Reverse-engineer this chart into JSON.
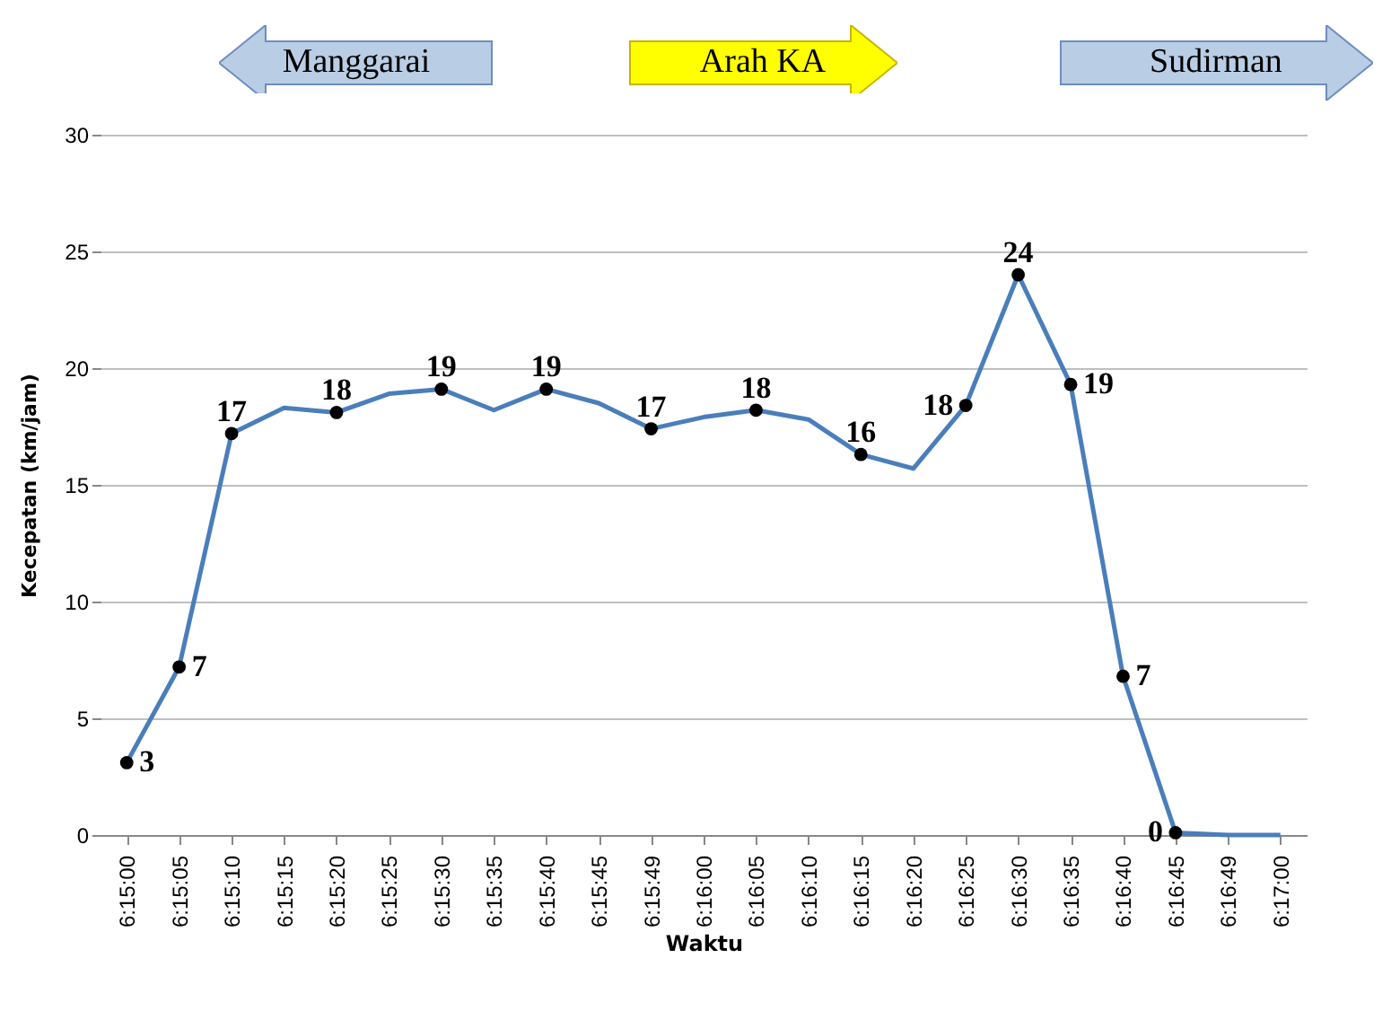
{
  "chart_data": {
    "type": "line",
    "annotations": [
      "Manggarai",
      "Arah KA",
      "Sudirman"
    ],
    "xlabel": "Waktu",
    "ylabel": "Kecepatan (km/jam)",
    "categories": [
      "6:15:00",
      "6:15:05",
      "6:15:10",
      "6:15:15",
      "6:15:20",
      "6:15:25",
      "6:15:30",
      "6:15:35",
      "6:15:40",
      "6:15:45",
      "6:15:49",
      "6:16:00",
      "6:16:05",
      "6:16:10",
      "6:16:15",
      "6:16:20",
      "6:16:25",
      "6:16:30",
      "6:16:35",
      "6:16:40",
      "6:16:45",
      "6:16:49",
      "6:17:00"
    ],
    "series": [
      {
        "color": "#4a7ebb",
        "values": [
          3.1,
          7.2,
          17.2,
          18.3,
          18.1,
          18.9,
          19.1,
          18.2,
          19.1,
          18.5,
          17.4,
          17.9,
          18.2,
          17.8,
          16.3,
          15.7,
          18.4,
          24.0,
          19.3,
          6.8,
          0.1,
          0,
          0
        ],
        "value_labels": [
          "3",
          "7",
          "17",
          null,
          "18",
          null,
          "19",
          null,
          "19",
          null,
          "17",
          null,
          "18",
          null,
          "16",
          null,
          "18",
          "24",
          "19",
          "7",
          "0",
          null,
          null
        ]
      }
    ],
    "ylim": [
      0,
      30
    ],
    "yticks": [
      0,
      5,
      10,
      15,
      20,
      25,
      30
    ],
    "grid": "y",
    "marker": "circle"
  }
}
